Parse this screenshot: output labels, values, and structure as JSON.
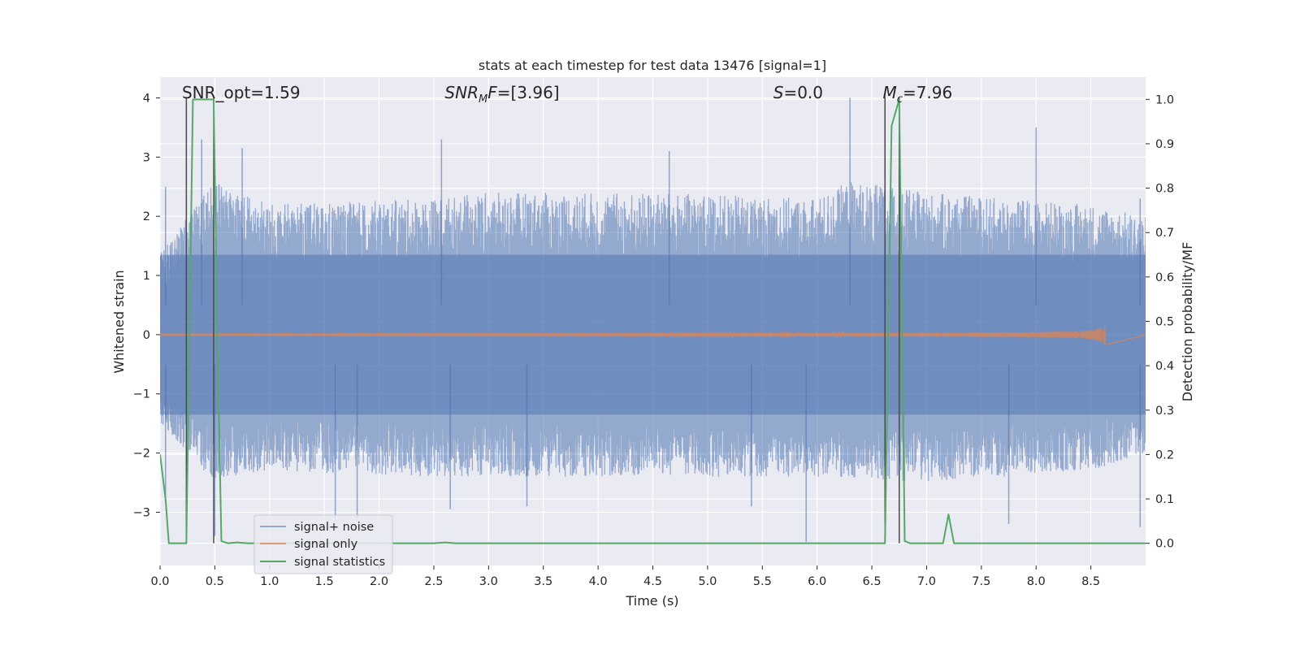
{
  "chart_data": {
    "type": "line",
    "title": "stats at each timestep for test data 13476 [signal=1]",
    "xlabel": "Time (s)",
    "ylabel_left": "Whitened strain",
    "ylabel_right": "Detection probability/MF",
    "xlim": [
      0.0,
      9.0
    ],
    "ylim_left": [
      -3.9,
      4.35
    ],
    "ylim_right": [
      -0.05,
      1.05
    ],
    "xticks": [
      0.0,
      0.5,
      1.0,
      1.5,
      2.0,
      2.5,
      3.0,
      3.5,
      4.0,
      4.5,
      5.0,
      5.5,
      6.0,
      6.5,
      7.0,
      7.5,
      8.0,
      8.5
    ],
    "xtick_labels": [
      "0.0",
      "0.5",
      "1.0",
      "1.5",
      "2.0",
      "2.5",
      "3.0",
      "3.5",
      "4.0",
      "4.5",
      "5.0",
      "5.5",
      "6.0",
      "6.5",
      "7.0",
      "7.5",
      "8.0",
      "8.5"
    ],
    "yticks_left": [
      -3,
      -2,
      -1,
      0,
      1,
      2,
      3,
      4
    ],
    "ytick_labels_left": [
      "−3",
      "−2",
      "−1",
      "0",
      "1",
      "2",
      "3",
      "4"
    ],
    "yticks_right": [
      0.0,
      0.1,
      0.2,
      0.3,
      0.4,
      0.5,
      0.6,
      0.7,
      0.8,
      0.9,
      1.0
    ],
    "ytick_labels_right": [
      "0.0",
      "0.1",
      "0.2",
      "0.3",
      "0.4",
      "0.5",
      "0.6",
      "0.7",
      "0.8",
      "0.9",
      "1.0"
    ],
    "grid": true,
    "legend_position": "bottom-left",
    "annotations": [
      {
        "name": "snr-opt",
        "x": 0.2,
        "text": "SNR_opt=1.59"
      },
      {
        "name": "snr-mf",
        "x": 2.6,
        "text": "SNR",
        "sub": "M",
        "suffix": "F=[3.96]",
        "italic": true
      },
      {
        "name": "s-value",
        "x": 5.6,
        "text": "S",
        "suffix": "=0.0",
        "italic": true
      },
      {
        "name": "chirp-mass",
        "x": 6.6,
        "text": "M",
        "sub": "c",
        "suffix": "=7.96",
        "italic": true
      }
    ],
    "vertical_lines": [
      0.24,
      0.49,
      6.62,
      6.75
    ],
    "series": [
      {
        "name": "signal+ noise",
        "color": "#4c72b0",
        "kind": "noise",
        "envelope_upper": [
          [
            0.0,
            1.4
          ],
          [
            0.5,
            2.6
          ],
          [
            1.0,
            2.2
          ],
          [
            2.5,
            2.3
          ],
          [
            3.0,
            2.4
          ],
          [
            4.5,
            2.4
          ],
          [
            6.0,
            2.3
          ],
          [
            6.3,
            2.6
          ],
          [
            7.0,
            2.4
          ],
          [
            8.5,
            2.2
          ],
          [
            9.0,
            2.0
          ]
        ],
        "envelope_lower": [
          [
            0.0,
            -1.5
          ],
          [
            0.5,
            -2.5
          ],
          [
            1.0,
            -2.3
          ],
          [
            2.5,
            -2.4
          ],
          [
            4.5,
            -2.4
          ],
          [
            6.0,
            -2.4
          ],
          [
            7.0,
            -2.5
          ],
          [
            8.5,
            -2.3
          ],
          [
            9.0,
            -2.0
          ]
        ],
        "peaks": [
          [
            0.05,
            2.5
          ],
          [
            0.38,
            3.3
          ],
          [
            0.75,
            3.15
          ],
          [
            2.57,
            3.3
          ],
          [
            4.65,
            3.1
          ],
          [
            6.3,
            4.0
          ],
          [
            6.62,
            4.05
          ],
          [
            8.0,
            3.5
          ],
          [
            8.95,
            2.3
          ]
        ],
        "troughs": [
          [
            0.05,
            -2.8
          ],
          [
            0.5,
            -3.4
          ],
          [
            1.6,
            -3.3
          ],
          [
            1.8,
            -3.1
          ],
          [
            2.65,
            -2.95
          ],
          [
            3.35,
            -2.9
          ],
          [
            5.4,
            -2.9
          ],
          [
            5.9,
            -3.5
          ],
          [
            7.75,
            -3.2
          ],
          [
            8.95,
            -3.25
          ]
        ]
      },
      {
        "name": "signal only",
        "color": "#dd8452",
        "kind": "chirp",
        "t_merge": 8.65,
        "peak_amplitude": 0.18
      },
      {
        "name": "signal statistics",
        "color": "#55a868",
        "axis": "right",
        "x": [
          0.0,
          0.05,
          0.08,
          0.24,
          0.27,
          0.3,
          0.49,
          0.52,
          0.56,
          0.62,
          0.7,
          0.8,
          2.5,
          2.6,
          2.7,
          6.62,
          6.68,
          6.75,
          6.8,
          6.85,
          7.15,
          7.2,
          7.25,
          9.0
        ],
        "y": [
          0.2,
          0.1,
          0.0,
          0.0,
          0.5,
          1.0,
          1.0,
          0.5,
          0.005,
          0.0,
          0.002,
          0.0,
          0.0,
          0.002,
          0.0,
          0.0,
          0.94,
          1.0,
          0.005,
          0.0,
          0.0,
          0.065,
          0.0,
          0.0
        ]
      }
    ]
  }
}
